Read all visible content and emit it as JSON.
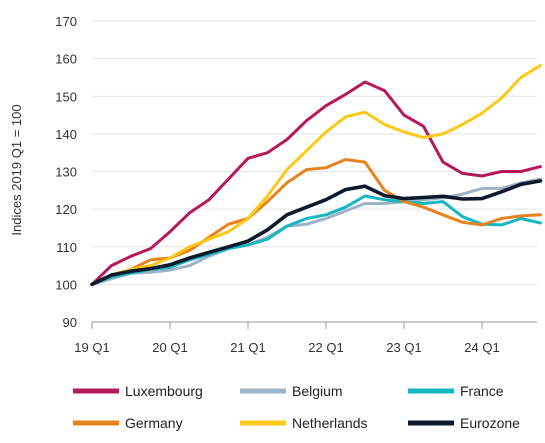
{
  "chart_data": {
    "type": "line",
    "title": "",
    "xlabel": "",
    "ylabel": "Indices 2019 Q1 = 100",
    "ylim": [
      90,
      170
    ],
    "yticks": [
      90,
      100,
      110,
      120,
      130,
      140,
      150,
      160,
      170
    ],
    "x_tick_labels": [
      "19 Q1",
      "20 Q1",
      "21 Q1",
      "22 Q1",
      "23 Q1",
      "24 Q1"
    ],
    "x": [
      "2019 Q1",
      "2019 Q2",
      "2019 Q3",
      "2019 Q4",
      "2020 Q1",
      "2020 Q2",
      "2020 Q3",
      "2020 Q4",
      "2021 Q1",
      "2021 Q2",
      "2021 Q3",
      "2021 Q4",
      "2022 Q1",
      "2022 Q2",
      "2022 Q3",
      "2022 Q4",
      "2023 Q1",
      "2023 Q2",
      "2023 Q3",
      "2023 Q4",
      "2024 Q1",
      "2024 Q2",
      "2024 Q3",
      "2024 Q4"
    ],
    "grid": "horizontal",
    "legend_placement": "bottom",
    "series": [
      {
        "name": "Luxembourg",
        "color": "#b5195b",
        "values": [
          100,
          105,
          107.5,
          109.5,
          114,
          119,
          122.5,
          128,
          133.5,
          135,
          138.5,
          143.5,
          147.5,
          150.5,
          153.8,
          151.5,
          145,
          142,
          132.5,
          129.5,
          128.8,
          130,
          130,
          131.3
        ]
      },
      {
        "name": "Belgium",
        "color": "#9db3c8",
        "values": [
          100,
          101.5,
          103,
          103.2,
          103.8,
          105,
          107.5,
          109.5,
          110.5,
          112.5,
          115.5,
          116,
          117.5,
          119.5,
          121.5,
          121.5,
          122,
          122.5,
          123,
          124,
          125.5,
          125.5,
          127,
          128
        ]
      },
      {
        "name": "France",
        "color": "#14b6c0",
        "values": [
          100,
          102,
          103,
          104,
          104.5,
          106.5,
          108,
          109.5,
          110.5,
          112,
          115.5,
          117.5,
          118.5,
          120.5,
          123.5,
          122.5,
          122,
          121.5,
          122,
          118,
          116,
          115.8,
          117.5,
          116.3
        ]
      },
      {
        "name": "Germany",
        "color": "#e8821e",
        "values": [
          100,
          102.5,
          104,
          106.5,
          107,
          109,
          112.5,
          116,
          117.5,
          122,
          127,
          130.5,
          131,
          133.2,
          132.5,
          125,
          122,
          120.5,
          118.5,
          116.5,
          115.8,
          117.5,
          118.2,
          118.5
        ]
      },
      {
        "name": "Netherlands",
        "color": "#fdc817",
        "values": [
          100,
          102.5,
          104,
          105,
          107,
          110,
          112,
          114,
          117.5,
          123.5,
          130.5,
          135.5,
          140.5,
          144.5,
          145.8,
          142.5,
          140.5,
          139,
          140,
          142.5,
          145.5,
          149.5,
          155,
          158.2
        ]
      },
      {
        "name": "Eurozone",
        "color": "#0e1a2b",
        "values": [
          100,
          102.5,
          103.5,
          104.2,
          105.2,
          107,
          108.5,
          110,
          111.5,
          114.5,
          118.5,
          120.5,
          122.5,
          125.2,
          126.1,
          123.6,
          122.8,
          123.1,
          123.4,
          122.7,
          122.8,
          124.6,
          126.6,
          127.5
        ]
      }
    ]
  }
}
